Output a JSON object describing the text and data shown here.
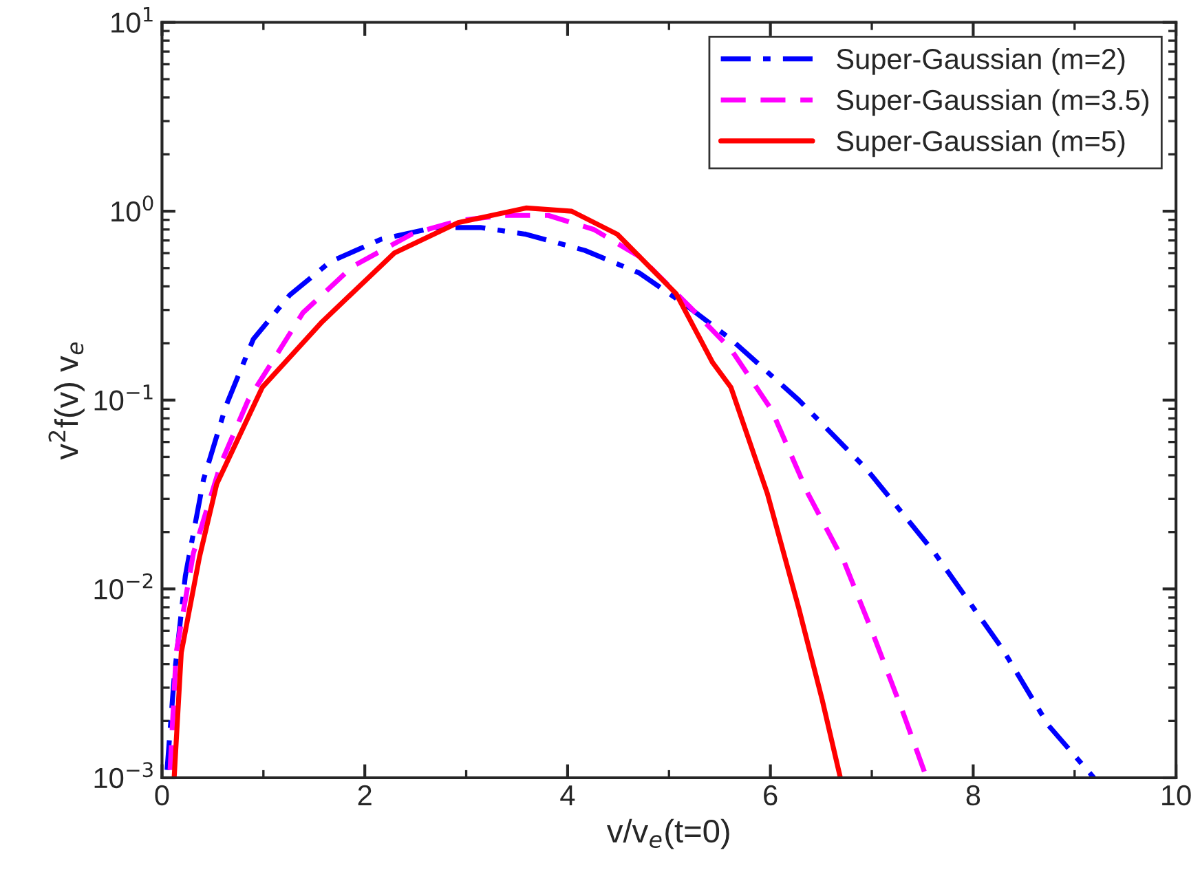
{
  "chart_data": {
    "type": "line",
    "xlabel": "v/v$_{e}$(t=0)",
    "ylabel": "v$^{2}$f(v) v$_{e}$",
    "log": "y",
    "xlim": [
      0,
      10
    ],
    "xticks": [
      0,
      2,
      4,
      6,
      8,
      10
    ],
    "ylim": [
      0.001,
      10
    ],
    "yticks": [
      {
        "value": 0.001,
        "label": "10$^{−3}$"
      },
      {
        "value": 0.01,
        "label": "10$^{−2}$"
      },
      {
        "value": 0.1,
        "label": "10$^{−1}$"
      },
      {
        "value": 1,
        "label": "10$^{0}$"
      },
      {
        "value": 10,
        "label": "10$^{1}$"
      }
    ],
    "grid": false,
    "legend": "top right",
    "series": [
      {
        "name": "Super-Gaussian (m=2)",
        "color": "#0000ff",
        "line_style": "dashdot",
        "x": [
          0.05,
          0.12,
          0.23,
          0.41,
          0.63,
          0.9,
          1.26,
          1.66,
          2.16,
          2.69,
          3.14,
          3.59,
          4.17,
          4.71,
          5.16,
          5.61,
          6.28,
          6.95,
          7.62,
          8.29,
          8.74,
          9.19
        ],
        "values": [
          0.0011,
          0.0034,
          0.0117,
          0.038,
          0.093,
          0.21,
          0.36,
          0.54,
          0.71,
          0.82,
          0.82,
          0.755,
          0.62,
          0.47,
          0.32,
          0.21,
          0.1,
          0.043,
          0.0155,
          0.0048,
          0.0019,
          0.001
        ]
      },
      {
        "name": "Super-Gaussian (m=3.5)",
        "color": "#ff00ff",
        "line_style": "dashed",
        "x": [
          0.08,
          0.14,
          0.31,
          0.58,
          0.85,
          1.39,
          1.88,
          2.47,
          2.92,
          3.36,
          3.81,
          4.26,
          4.71,
          5.21,
          5.61,
          6.01,
          6.37,
          6.73,
          7.0,
          7.31,
          7.54
        ],
        "values": [
          0.0011,
          0.0046,
          0.0155,
          0.046,
          0.1,
          0.29,
          0.51,
          0.76,
          0.89,
          0.95,
          0.95,
          0.8,
          0.575,
          0.31,
          0.186,
          0.089,
          0.032,
          0.0138,
          0.006,
          0.0022,
          0.001
        ]
      },
      {
        "name": "Super-Gaussian (m=5)",
        "color": "#ff0000",
        "line_style": "solid",
        "x": [
          0.12,
          0.19,
          0.37,
          0.54,
          0.99,
          1.58,
          2.29,
          2.92,
          3.59,
          4.04,
          4.49,
          5.07,
          5.43,
          5.61,
          5.97,
          6.28,
          6.51,
          6.69
        ],
        "values": [
          0.001,
          0.0046,
          0.0148,
          0.036,
          0.117,
          0.26,
          0.6,
          0.87,
          1.04,
          1.0,
          0.755,
          0.366,
          0.158,
          0.117,
          0.032,
          0.0079,
          0.0026,
          0.001
        ]
      }
    ]
  }
}
